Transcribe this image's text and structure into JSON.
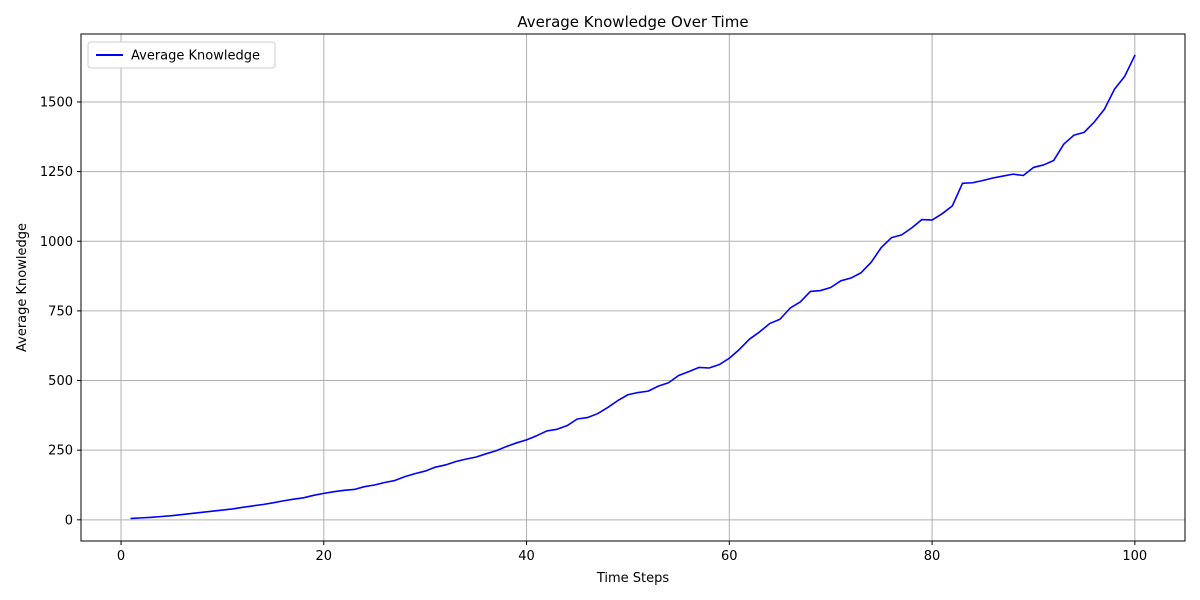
{
  "chart_data": {
    "type": "line",
    "title": "Average Knowledge Over Time",
    "xlabel": "Time Steps",
    "ylabel": "Average Knowledge",
    "xlim": [
      -3.95,
      104.95
    ],
    "ylim": [
      -76,
      1744
    ],
    "xticks": [
      0,
      20,
      40,
      60,
      80,
      100
    ],
    "yticks": [
      0,
      250,
      500,
      750,
      1000,
      1250,
      1500
    ],
    "xtick_labels": [
      "0",
      "20",
      "40",
      "60",
      "80",
      "100"
    ],
    "ytick_labels": [
      "0",
      "250",
      "500",
      "750",
      "1000",
      "1250",
      "1500"
    ],
    "grid": true,
    "legend": {
      "position": "upper-left",
      "entries": [
        "Average Knowledge"
      ]
    },
    "series": [
      {
        "name": "Average Knowledge",
        "color": "#0000ff",
        "x": [
          1,
          2,
          3,
          4,
          5,
          6,
          7,
          8,
          9,
          10,
          11,
          12,
          13,
          14,
          15,
          16,
          17,
          18,
          19,
          20,
          21,
          22,
          23,
          24,
          25,
          26,
          27,
          28,
          29,
          30,
          31,
          32,
          33,
          34,
          35,
          36,
          37,
          38,
          39,
          40,
          41,
          42,
          43,
          44,
          45,
          46,
          47,
          48,
          49,
          50,
          51,
          52,
          53,
          54,
          55,
          56,
          57,
          58,
          59,
          60,
          61,
          62,
          63,
          64,
          65,
          66,
          67,
          68,
          69,
          70,
          71,
          72,
          73,
          74,
          75,
          76,
          77,
          78,
          79,
          80,
          81,
          82,
          83,
          84,
          85,
          86,
          87,
          88,
          89,
          90,
          91,
          92,
          93,
          94,
          95,
          96,
          97,
          98,
          99,
          100
        ],
        "values": [
          5,
          7,
          9,
          12,
          15,
          19,
          23,
          27,
          31,
          35,
          39,
          45,
          50,
          55,
          61,
          68,
          74,
          79,
          88,
          95,
          101,
          106,
          109,
          119,
          125,
          134,
          141,
          155,
          166,
          175,
          189,
          197,
          209,
          218,
          225,
          237,
          248,
          263,
          276,
          287,
          302,
          319,
          325,
          338,
          362,
          367,
          381,
          403,
          428,
          449,
          457,
          462,
          480,
          492,
          518,
          532,
          547,
          545,
          557,
          580,
          612,
          649,
          675,
          705,
          720,
          760,
          782,
          820,
          823,
          834,
          858,
          868,
          887,
          925,
          978,
          1013,
          1023,
          1048,
          1078,
          1076,
          1099,
          1127,
          1208,
          1210,
          1218,
          1227,
          1234,
          1241,
          1236,
          1265,
          1274,
          1290,
          1349,
          1381,
          1391,
          1428,
          1474,
          1546,
          1592,
          1667
        ]
      }
    ]
  }
}
